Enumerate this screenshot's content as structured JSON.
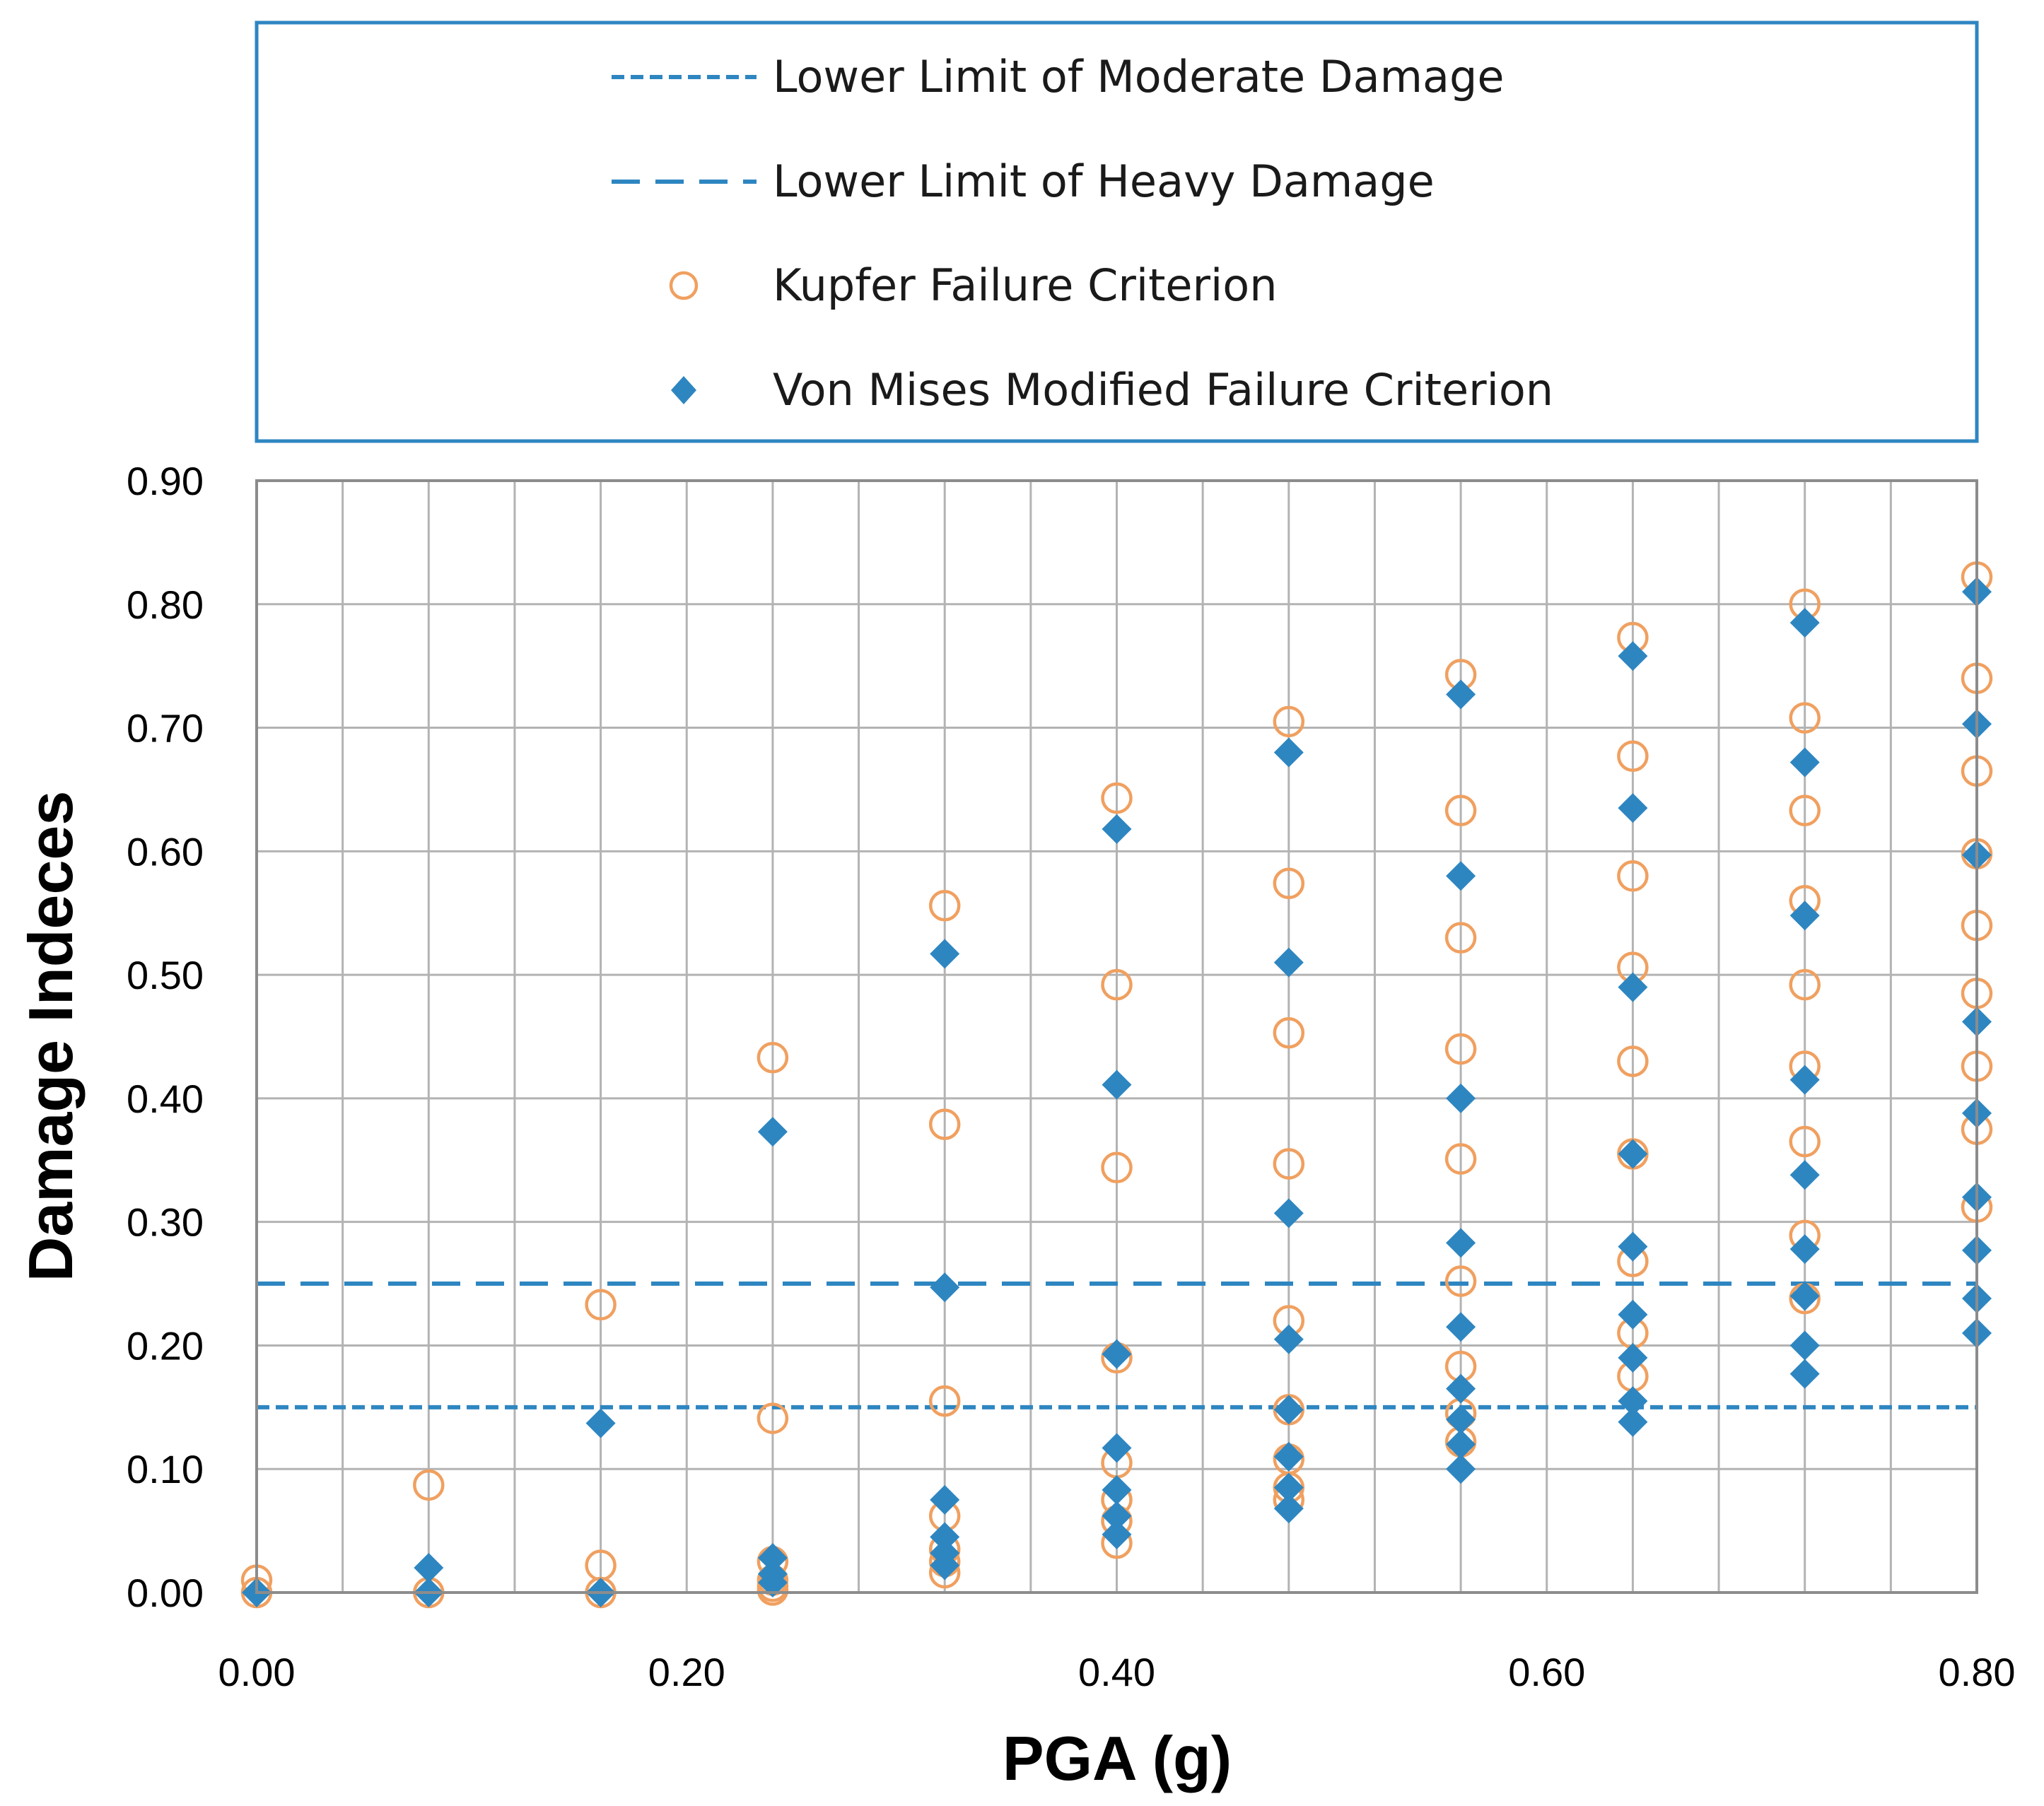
{
  "chart_data": {
    "type": "scatter",
    "title": "",
    "xlabel": "PGA (g)",
    "ylabel": "Damage Indeces",
    "xlim": [
      0,
      0.8
    ],
    "ylim": [
      0,
      0.9
    ],
    "x_ticks": [
      "0.00",
      "0.20",
      "0.40",
      "0.60",
      "0.80"
    ],
    "y_ticks": [
      "0.00",
      "0.10",
      "0.20",
      "0.30",
      "0.40",
      "0.50",
      "0.60",
      "0.70",
      "0.80",
      "0.90"
    ],
    "x_grid_step": 0.04,
    "y_grid_step": 0.1,
    "grid": true,
    "legend_position": "top",
    "reference_lines": [
      {
        "name": "Lower Limit of Moderate Damage",
        "y": 0.15,
        "style": "short-dash",
        "color": "#2E86C1"
      },
      {
        "name": "Lower Limit of Heavy Damage",
        "y": 0.25,
        "style": "long-dash",
        "color": "#2E86C1"
      }
    ],
    "series": [
      {
        "name": "Kupfer Failure Criterion",
        "marker": "open-circle",
        "color": "#F0A060",
        "points": [
          [
            0,
            0.01
          ],
          [
            0,
            0
          ],
          [
            0.08,
            0.087
          ],
          [
            0.08,
            0
          ],
          [
            0.16,
            0.233
          ],
          [
            0.16,
            0.022
          ],
          [
            0.16,
            0
          ],
          [
            0.24,
            0.433
          ],
          [
            0.24,
            0.141
          ],
          [
            0.24,
            0.025
          ],
          [
            0.24,
            0.01
          ],
          [
            0.24,
            0.005
          ],
          [
            0.24,
            0.002
          ],
          [
            0.32,
            0.556
          ],
          [
            0.32,
            0.379
          ],
          [
            0.32,
            0.155
          ],
          [
            0.32,
            0.062
          ],
          [
            0.32,
            0.035
          ],
          [
            0.32,
            0.025
          ],
          [
            0.32,
            0.016
          ],
          [
            0.4,
            0.643
          ],
          [
            0.4,
            0.492
          ],
          [
            0.4,
            0.344
          ],
          [
            0.4,
            0.19
          ],
          [
            0.4,
            0.105
          ],
          [
            0.4,
            0.075
          ],
          [
            0.4,
            0.058
          ],
          [
            0.4,
            0.04
          ],
          [
            0.48,
            0.705
          ],
          [
            0.48,
            0.574
          ],
          [
            0.48,
            0.453
          ],
          [
            0.48,
            0.347
          ],
          [
            0.48,
            0.22
          ],
          [
            0.48,
            0.148
          ],
          [
            0.48,
            0.108
          ],
          [
            0.48,
            0.085
          ],
          [
            0.48,
            0.075
          ],
          [
            0.56,
            0.743
          ],
          [
            0.56,
            0.633
          ],
          [
            0.56,
            0.53
          ],
          [
            0.56,
            0.44
          ],
          [
            0.56,
            0.351
          ],
          [
            0.56,
            0.252
          ],
          [
            0.56,
            0.183
          ],
          [
            0.56,
            0.145
          ],
          [
            0.56,
            0.122
          ],
          [
            0.64,
            0.773
          ],
          [
            0.64,
            0.677
          ],
          [
            0.64,
            0.58
          ],
          [
            0.64,
            0.506
          ],
          [
            0.64,
            0.43
          ],
          [
            0.64,
            0.355
          ],
          [
            0.64,
            0.268
          ],
          [
            0.64,
            0.21
          ],
          [
            0.64,
            0.175
          ],
          [
            0.72,
            0.8
          ],
          [
            0.72,
            0.708
          ],
          [
            0.72,
            0.633
          ],
          [
            0.72,
            0.56
          ],
          [
            0.72,
            0.492
          ],
          [
            0.72,
            0.426
          ],
          [
            0.72,
            0.365
          ],
          [
            0.72,
            0.289
          ],
          [
            0.72,
            0.238
          ],
          [
            0.8,
            0.822
          ],
          [
            0.8,
            0.74
          ],
          [
            0.8,
            0.665
          ],
          [
            0.8,
            0.598
          ],
          [
            0.8,
            0.54
          ],
          [
            0.8,
            0.485
          ],
          [
            0.8,
            0.426
          ],
          [
            0.8,
            0.375
          ],
          [
            0.8,
            0.312
          ]
        ]
      },
      {
        "name": "Von Mises Modified Failure Criterion",
        "marker": "filled-diamond",
        "color": "#2E86C1",
        "points": [
          [
            0,
            0
          ],
          [
            0.08,
            0.02
          ],
          [
            0.08,
            0
          ],
          [
            0.16,
            0.137
          ],
          [
            0.16,
            0
          ],
          [
            0.24,
            0.373
          ],
          [
            0.24,
            0.028
          ],
          [
            0.24,
            0.015
          ],
          [
            0.24,
            0.008
          ],
          [
            0.32,
            0.517
          ],
          [
            0.32,
            0.247
          ],
          [
            0.32,
            0.075
          ],
          [
            0.32,
            0.045
          ],
          [
            0.32,
            0.032
          ],
          [
            0.32,
            0.022
          ],
          [
            0.4,
            0.618
          ],
          [
            0.4,
            0.411
          ],
          [
            0.4,
            0.193
          ],
          [
            0.4,
            0.117
          ],
          [
            0.4,
            0.083
          ],
          [
            0.4,
            0.062
          ],
          [
            0.4,
            0.047
          ],
          [
            0.48,
            0.68
          ],
          [
            0.48,
            0.51
          ],
          [
            0.48,
            0.307
          ],
          [
            0.48,
            0.205
          ],
          [
            0.48,
            0.148
          ],
          [
            0.48,
            0.11
          ],
          [
            0.48,
            0.085
          ],
          [
            0.48,
            0.068
          ],
          [
            0.56,
            0.727
          ],
          [
            0.56,
            0.58
          ],
          [
            0.56,
            0.4
          ],
          [
            0.56,
            0.283
          ],
          [
            0.56,
            0.215
          ],
          [
            0.56,
            0.165
          ],
          [
            0.56,
            0.14
          ],
          [
            0.56,
            0.12
          ],
          [
            0.56,
            0.1
          ],
          [
            0.64,
            0.758
          ],
          [
            0.64,
            0.635
          ],
          [
            0.64,
            0.49
          ],
          [
            0.64,
            0.355
          ],
          [
            0.64,
            0.28
          ],
          [
            0.64,
            0.225
          ],
          [
            0.64,
            0.19
          ],
          [
            0.64,
            0.155
          ],
          [
            0.64,
            0.138
          ],
          [
            0.72,
            0.785
          ],
          [
            0.72,
            0.672
          ],
          [
            0.72,
            0.548
          ],
          [
            0.72,
            0.415
          ],
          [
            0.72,
            0.338
          ],
          [
            0.72,
            0.278
          ],
          [
            0.72,
            0.24
          ],
          [
            0.72,
            0.2
          ],
          [
            0.72,
            0.177
          ],
          [
            0.8,
            0.81
          ],
          [
            0.8,
            0.703
          ],
          [
            0.8,
            0.597
          ],
          [
            0.8,
            0.462
          ],
          [
            0.8,
            0.388
          ],
          [
            0.8,
            0.32
          ],
          [
            0.8,
            0.277
          ],
          [
            0.8,
            0.238
          ],
          [
            0.8,
            0.21
          ]
        ]
      }
    ]
  },
  "legend": {
    "items": [
      {
        "label": "Lower Limit of Moderate Damage",
        "symbol": "short-dash"
      },
      {
        "label": "Lower Limit of Heavy Damage",
        "symbol": "long-dash"
      },
      {
        "label": "Kupfer Failure Criterion",
        "symbol": "open-circle"
      },
      {
        "label": "Von Mises Modified Failure Criterion",
        "symbol": "filled-diamond"
      }
    ]
  }
}
